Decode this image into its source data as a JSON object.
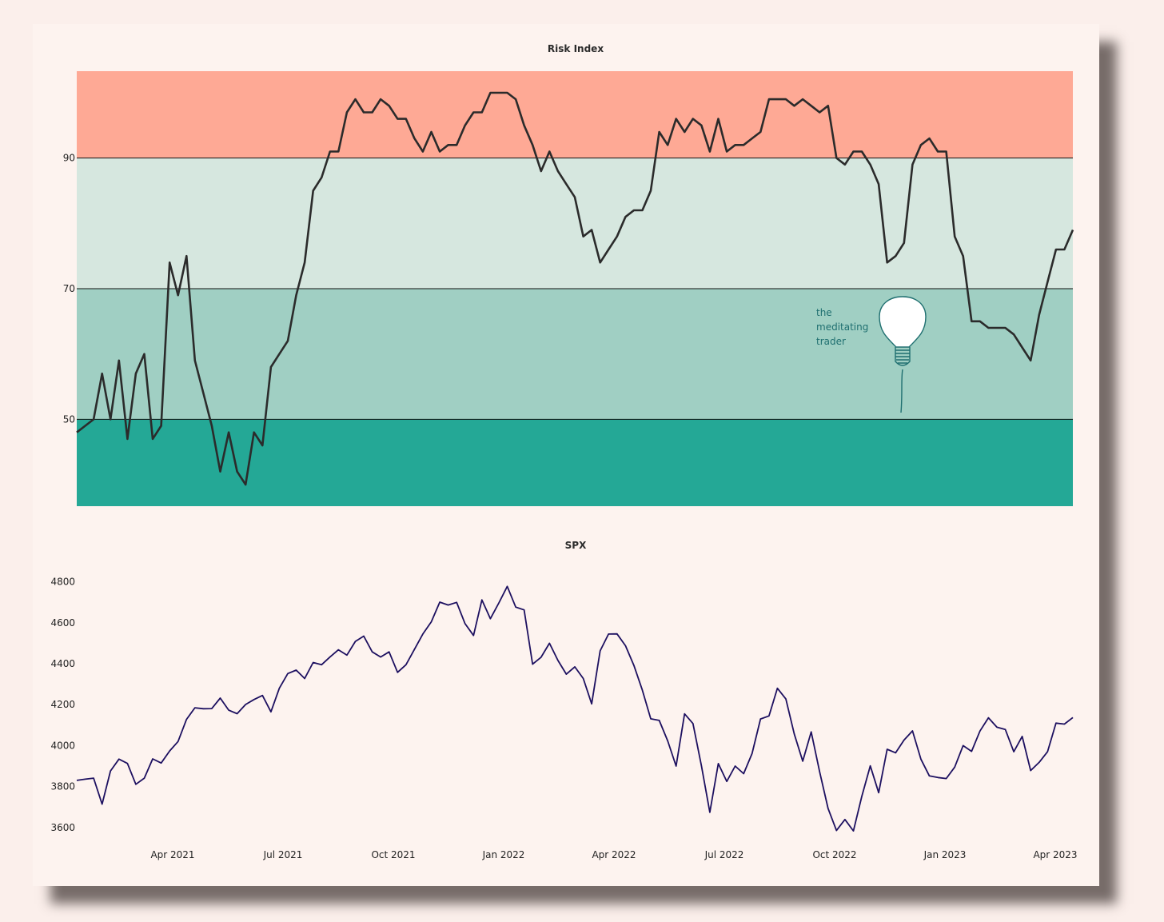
{
  "colors": {
    "page_background": "#fbefeb",
    "card_background": "#fdf3ef",
    "zone_high": "#fea995",
    "zone_upper_mid": "#d6e7df",
    "zone_lower_mid": "#a0cfc3",
    "zone_low": "#24a896",
    "risk_line": "#2b2b2b",
    "spx_line": "#1d1060",
    "watermark": "#1f6f70"
  },
  "watermark": {
    "lines": [
      "the",
      "meditating",
      "trader"
    ],
    "icon": "lightbulb-icon"
  },
  "shared_x_ticks": [
    "Apr 2021",
    "Jul 2021",
    "Oct 2021",
    "Jan 2022",
    "Apr 2022",
    "Jul 2022",
    "Oct 2022",
    "Jan 2023",
    "Apr 2023"
  ],
  "chart_data": [
    {
      "type": "line",
      "title": "Risk Index",
      "xlabel": "",
      "ylabel": "",
      "y_ticks": [
        "50",
        "70",
        "90"
      ],
      "ylim": [
        36.7,
        103.3
      ],
      "bands": [
        {
          "from": 90,
          "to": 103.3,
          "color": "#fea995"
        },
        {
          "from": 70,
          "to": 90,
          "color": "#d6e7df"
        },
        {
          "from": 50,
          "to": 70,
          "color": "#a0cfc3"
        },
        {
          "from": 36.7,
          "to": 50,
          "color": "#24a896"
        }
      ],
      "grid": false,
      "legend": "none",
      "series": [
        {
          "values": [
            48,
            49,
            50,
            57,
            50,
            59,
            47,
            57,
            60,
            47,
            49,
            74,
            69,
            75,
            59,
            54,
            49,
            42,
            48,
            42,
            40,
            48,
            46,
            58,
            60,
            62,
            69,
            74,
            85,
            87,
            91,
            91,
            97,
            99,
            97,
            97,
            99,
            98,
            96,
            96,
            93,
            91,
            94,
            91,
            92,
            92,
            95,
            97,
            97,
            100,
            100,
            100,
            99,
            95,
            92,
            88,
            91,
            88,
            86,
            84,
            78,
            79,
            74,
            76,
            78,
            81,
            82,
            82,
            85,
            94,
            92,
            96,
            94,
            96,
            95,
            91,
            96,
            91,
            92,
            92,
            93,
            94,
            99,
            99,
            99,
            98,
            99,
            98,
            97,
            98,
            90,
            89,
            91,
            91,
            89,
            86,
            74,
            75,
            77,
            89,
            92,
            93,
            91,
            91,
            78,
            75,
            65,
            65,
            64,
            64,
            64,
            63,
            61,
            59,
            66,
            71,
            76,
            76,
            79
          ]
        }
      ]
    },
    {
      "type": "line",
      "title": "SPX",
      "xlabel": "",
      "ylabel": "",
      "x_tick_labels": [
        "Apr 2021",
        "Jul 2021",
        "Oct 2021",
        "Jan 2022",
        "Apr 2022",
        "Jul 2022",
        "Oct 2022",
        "Jan 2023",
        "Apr 2023"
      ],
      "y_ticks": [
        "3600",
        "3800",
        "4000",
        "4200",
        "4400",
        "4600",
        "4800"
      ],
      "ylim": [
        3560,
        4830
      ],
      "grid": false,
      "legend": "none",
      "series": [
        {
          "values": [
            3830,
            3836,
            3841,
            3714,
            3876,
            3934,
            3913,
            3811,
            3841,
            3935,
            3915,
            3974,
            4020,
            4128,
            4185,
            4180,
            4181,
            4232,
            4173,
            4156,
            4201,
            4225,
            4245,
            4165,
            4280,
            4352,
            4369,
            4328,
            4406,
            4395,
            4433,
            4468,
            4442,
            4509,
            4535,
            4458,
            4433,
            4458,
            4358,
            4395,
            4470,
            4545,
            4605,
            4701,
            4687,
            4700,
            4596,
            4538,
            4712,
            4620,
            4697,
            4778,
            4677,
            4663,
            4398,
            4432,
            4500,
            4416,
            4349,
            4385,
            4328,
            4204,
            4463,
            4545,
            4546,
            4488,
            4392,
            4271,
            4131,
            4123,
            4023,
            3900,
            4155,
            4108,
            3901,
            3674,
            3912,
            3825,
            3900,
            3863,
            3961,
            4130,
            4145,
            4280,
            4228,
            4057,
            3924,
            4067,
            3873,
            3693,
            3585,
            3639,
            3583,
            3752,
            3901,
            3770,
            3982,
            3965,
            4027,
            4072,
            3934,
            3852,
            3844,
            3839,
            3895,
            4000,
            3972,
            4071,
            4136,
            4090,
            4079,
            3970,
            4045,
            3878,
            3918,
            3970,
            4110,
            4105,
            4137
          ]
        }
      ]
    }
  ]
}
